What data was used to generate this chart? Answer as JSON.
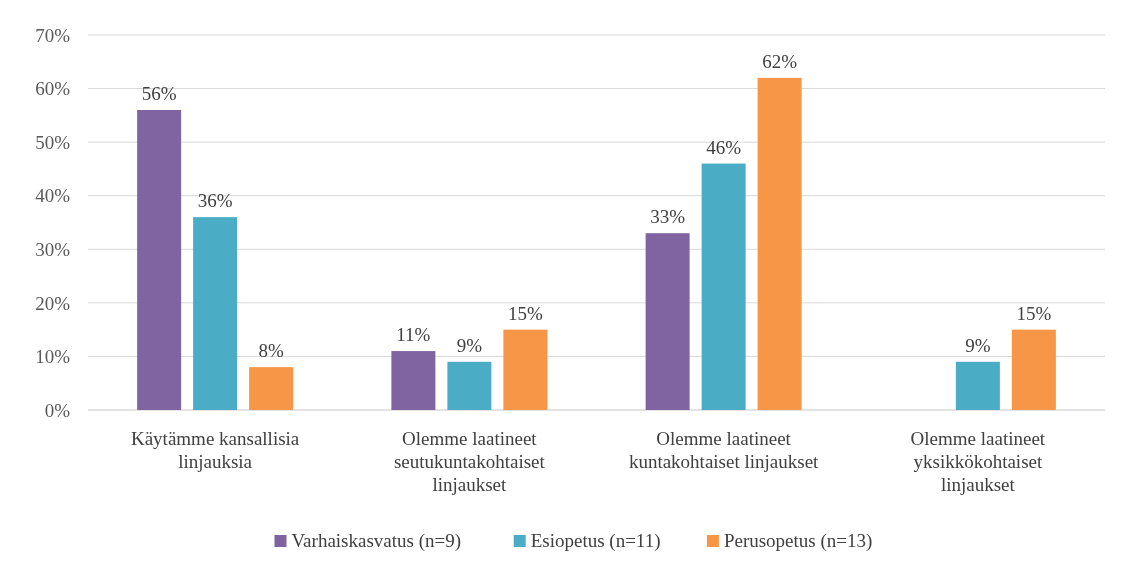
{
  "chart_data": {
    "type": "bar",
    "categories": [
      "Käytämme kansallisia linjauksia",
      "Olemme laatineet seutukuntakohtaiset linjaukset",
      "Olemme laatineet kuntakohtaiset linjaukset",
      "Olemme laatineet yksikkökohtaiset linjaukset"
    ],
    "series": [
      {
        "name": "Varhaiskasvatus (n=9)",
        "color": "#8064a2",
        "values": [
          56,
          11,
          33,
          null
        ],
        "value_labels": [
          "56%",
          "11%",
          "33%",
          null
        ]
      },
      {
        "name": "Esiopetus (n=11)",
        "color": "#4bacc6",
        "values": [
          36,
          9,
          46,
          9
        ],
        "value_labels": [
          "36%",
          "9%",
          "46%",
          "9%"
        ]
      },
      {
        "name": "Perusopetus (n=13)",
        "color": "#f79646",
        "values": [
          8,
          15,
          62,
          15
        ],
        "value_labels": [
          "8%",
          "15%",
          "62%",
          "15%"
        ]
      }
    ],
    "ylim": [
      0,
      70
    ],
    "yticks": [
      {
        "value": 0,
        "label": "0%"
      },
      {
        "value": 10,
        "label": "10%"
      },
      {
        "value": 20,
        "label": "20%"
      },
      {
        "value": 30,
        "label": "30%"
      },
      {
        "value": 40,
        "label": "40%"
      },
      {
        "value": 50,
        "label": "50%"
      },
      {
        "value": 60,
        "label": "60%"
      },
      {
        "value": 70,
        "label": "70%"
      }
    ],
    "grid": "y",
    "legend": "bottom"
  }
}
